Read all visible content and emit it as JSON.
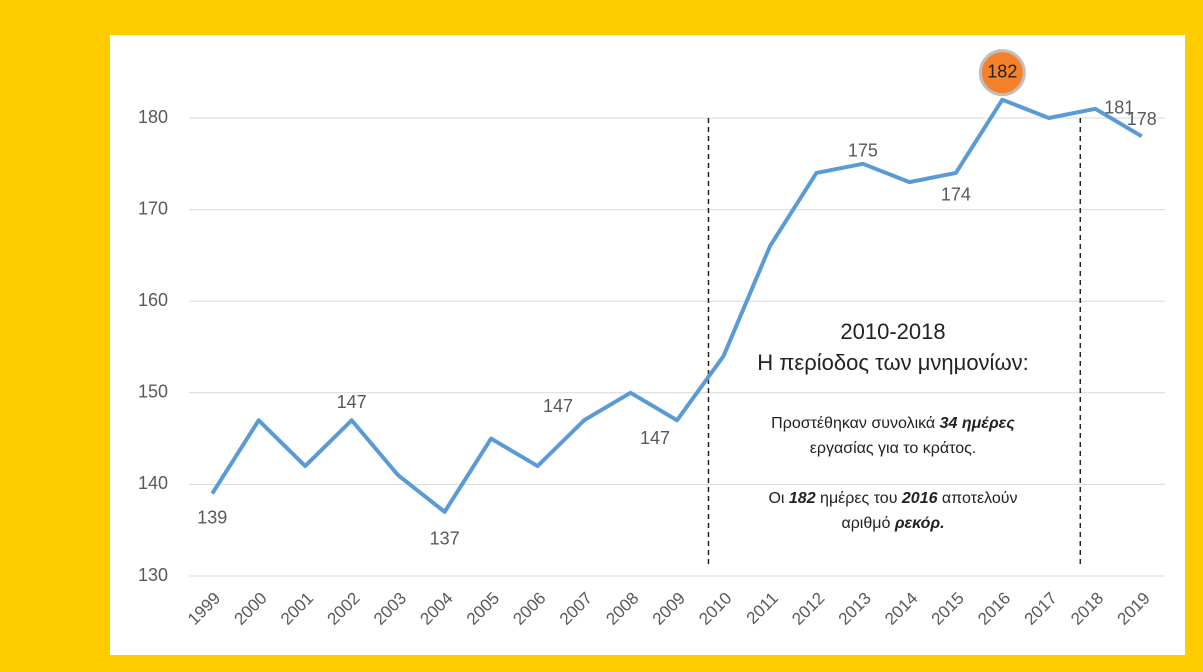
{
  "chart_data": {
    "type": "line",
    "categories": [
      "1999",
      "2000",
      "2001",
      "2002",
      "2003",
      "2004",
      "2005",
      "2006",
      "2007",
      "2008",
      "2009",
      "2010",
      "2011",
      "2012",
      "2013",
      "2014",
      "2015",
      "2016",
      "2017",
      "2018",
      "2019"
    ],
    "series": [
      {
        "name": "",
        "color": "#5b9bd5",
        "values": [
          139,
          147,
          142,
          147,
          141,
          137,
          145,
          142,
          147,
          150,
          147,
          154,
          166,
          174,
          175,
          173,
          174,
          182,
          180,
          181,
          178
        ]
      }
    ],
    "value_labels": [
      "139",
      null,
      null,
      "147",
      null,
      "137",
      null,
      null,
      "147",
      null,
      "147",
      null,
      null,
      null,
      "175",
      null,
      "174",
      "182",
      null,
      "181",
      "178"
    ],
    "highlight_index": 17,
    "highlight_color": "#f5822a",
    "ylim": [
      130,
      185
    ],
    "yticks": [
      130,
      140,
      150,
      160,
      170,
      180
    ],
    "grid": true,
    "annotation": {
      "title": "2010-2018",
      "subtitle": "Η περίοδος των μνημονίων:",
      "lines": [
        [
          "Προστέθηκαν συνολικά ",
          "34 ημέρες"
        ],
        [
          "εργασίας για το κράτος."
        ],
        [
          "Οι ",
          "182",
          " ημέρες του ",
          "2016",
          " αποτελούν"
        ],
        [
          "αριθμό ",
          "ρεκόρ."
        ]
      ]
    }
  }
}
